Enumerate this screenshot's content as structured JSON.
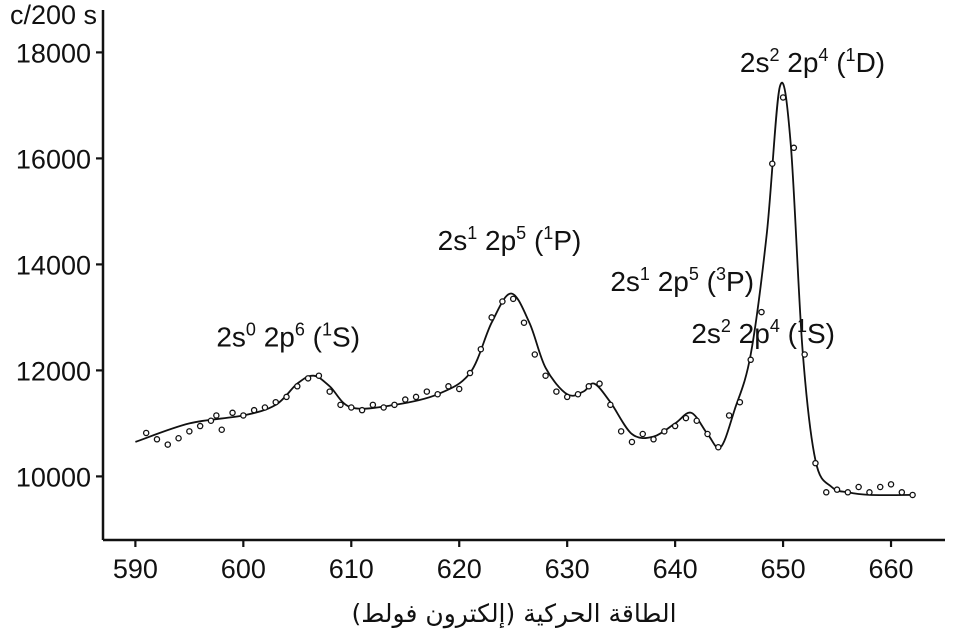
{
  "chart_data": {
    "type": "line",
    "title": "",
    "xlabel": "الطاقة الحركية (إلكترون فولط)",
    "ylabel": "c/200 s",
    "xlim": [
      587,
      665
    ],
    "ylim": [
      8800,
      18800
    ],
    "xticks": [
      590,
      600,
      610,
      620,
      630,
      640,
      650,
      660
    ],
    "yticks": [
      10000,
      12000,
      14000,
      16000,
      18000
    ],
    "grid": false,
    "legend": "none",
    "annotations": [
      {
        "id": "ann-1s",
        "x": 597.5,
        "y": 12450,
        "base": "2s",
        "s1": "0",
        "mid": " 2p",
        "s2": "6",
        "open": " (",
        "s3": "1",
        "term": "S)"
      },
      {
        "id": "ann-1p",
        "x": 618.0,
        "y": 14270,
        "base": "2s",
        "s1": "1",
        "mid": " 2p",
        "s2": "5",
        "open": " (",
        "s3": "1",
        "term": "P)"
      },
      {
        "id": "ann-3p",
        "x": 634.0,
        "y": 13500,
        "base": "2s",
        "s1": "1",
        "mid": " 2p",
        "s2": "5",
        "open": " (",
        "s3": "3",
        "term": "P)"
      },
      {
        "id": "ann-1s2",
        "x": 641.5,
        "y": 12520,
        "base": "2s",
        "s1": "2",
        "mid": " 2p",
        "s2": "4",
        "open": " (",
        "s3": "1",
        "term": "S)"
      },
      {
        "id": "ann-1d",
        "x": 646.0,
        "y": 17630,
        "base": "2s",
        "s1": "2",
        "mid": " 2p",
        "s2": "4",
        "open": " (",
        "s3": "1",
        "term": "D)"
      }
    ],
    "series": [
      {
        "style": "line",
        "x": [
          590,
          595,
          600,
          603,
          605,
          606.5,
          608,
          610,
          614,
          618,
          621,
          623,
          624.8,
          626.5,
          628,
          630,
          631.5,
          632.5,
          634,
          636,
          638,
          640,
          641.5,
          643,
          644.2,
          645.5,
          647,
          648.5,
          649.7,
          650.7,
          651.8,
          653,
          654.5,
          656,
          658,
          662
        ],
        "y": [
          10650,
          11000,
          11150,
          11350,
          11750,
          11900,
          11700,
          11300,
          11350,
          11550,
          11950,
          12900,
          13450,
          12900,
          12050,
          11550,
          11600,
          11750,
          11400,
          10800,
          10750,
          11000,
          11200,
          10800,
          10550,
          11250,
          12300,
          14600,
          17350,
          16300,
          12400,
          10300,
          9800,
          9700,
          9650,
          9650
        ]
      },
      {
        "style": "points",
        "x": [
          591,
          592,
          593,
          594,
          595,
          596,
          597,
          597.5,
          598,
          599,
          600,
          601,
          602,
          603,
          604,
          605,
          606,
          607,
          608,
          609,
          610,
          611,
          612,
          613,
          614,
          615,
          616,
          617,
          618,
          619,
          620,
          621,
          622,
          623,
          624,
          625,
          626,
          627,
          628,
          629,
          630,
          631,
          632,
          633,
          634,
          635,
          636,
          637,
          638,
          639,
          640,
          641,
          642,
          643,
          644,
          645,
          646,
          647,
          648,
          649,
          650,
          651,
          652,
          653,
          654,
          655,
          656,
          657,
          658,
          659,
          660,
          661,
          662
        ],
        "y": [
          10820,
          10700,
          10600,
          10720,
          10850,
          10950,
          11050,
          11150,
          10880,
          11200,
          11150,
          11250,
          11300,
          11400,
          11500,
          11700,
          11850,
          11900,
          11600,
          11350,
          11300,
          11250,
          11350,
          11300,
          11350,
          11450,
          11500,
          11600,
          11550,
          11700,
          11650,
          11950,
          12400,
          13000,
          13300,
          13350,
          12900,
          12300,
          11900,
          11600,
          11500,
          11550,
          11700,
          11750,
          11350,
          10850,
          10650,
          10800,
          10700,
          10850,
          10950,
          11100,
          11050,
          10800,
          10550,
          11150,
          11400,
          12200,
          13100,
          15900,
          17150,
          16200,
          12300,
          10250,
          9700,
          9750,
          9700,
          9800,
          9700,
          9800,
          9850,
          9700,
          9650
        ]
      }
    ]
  }
}
